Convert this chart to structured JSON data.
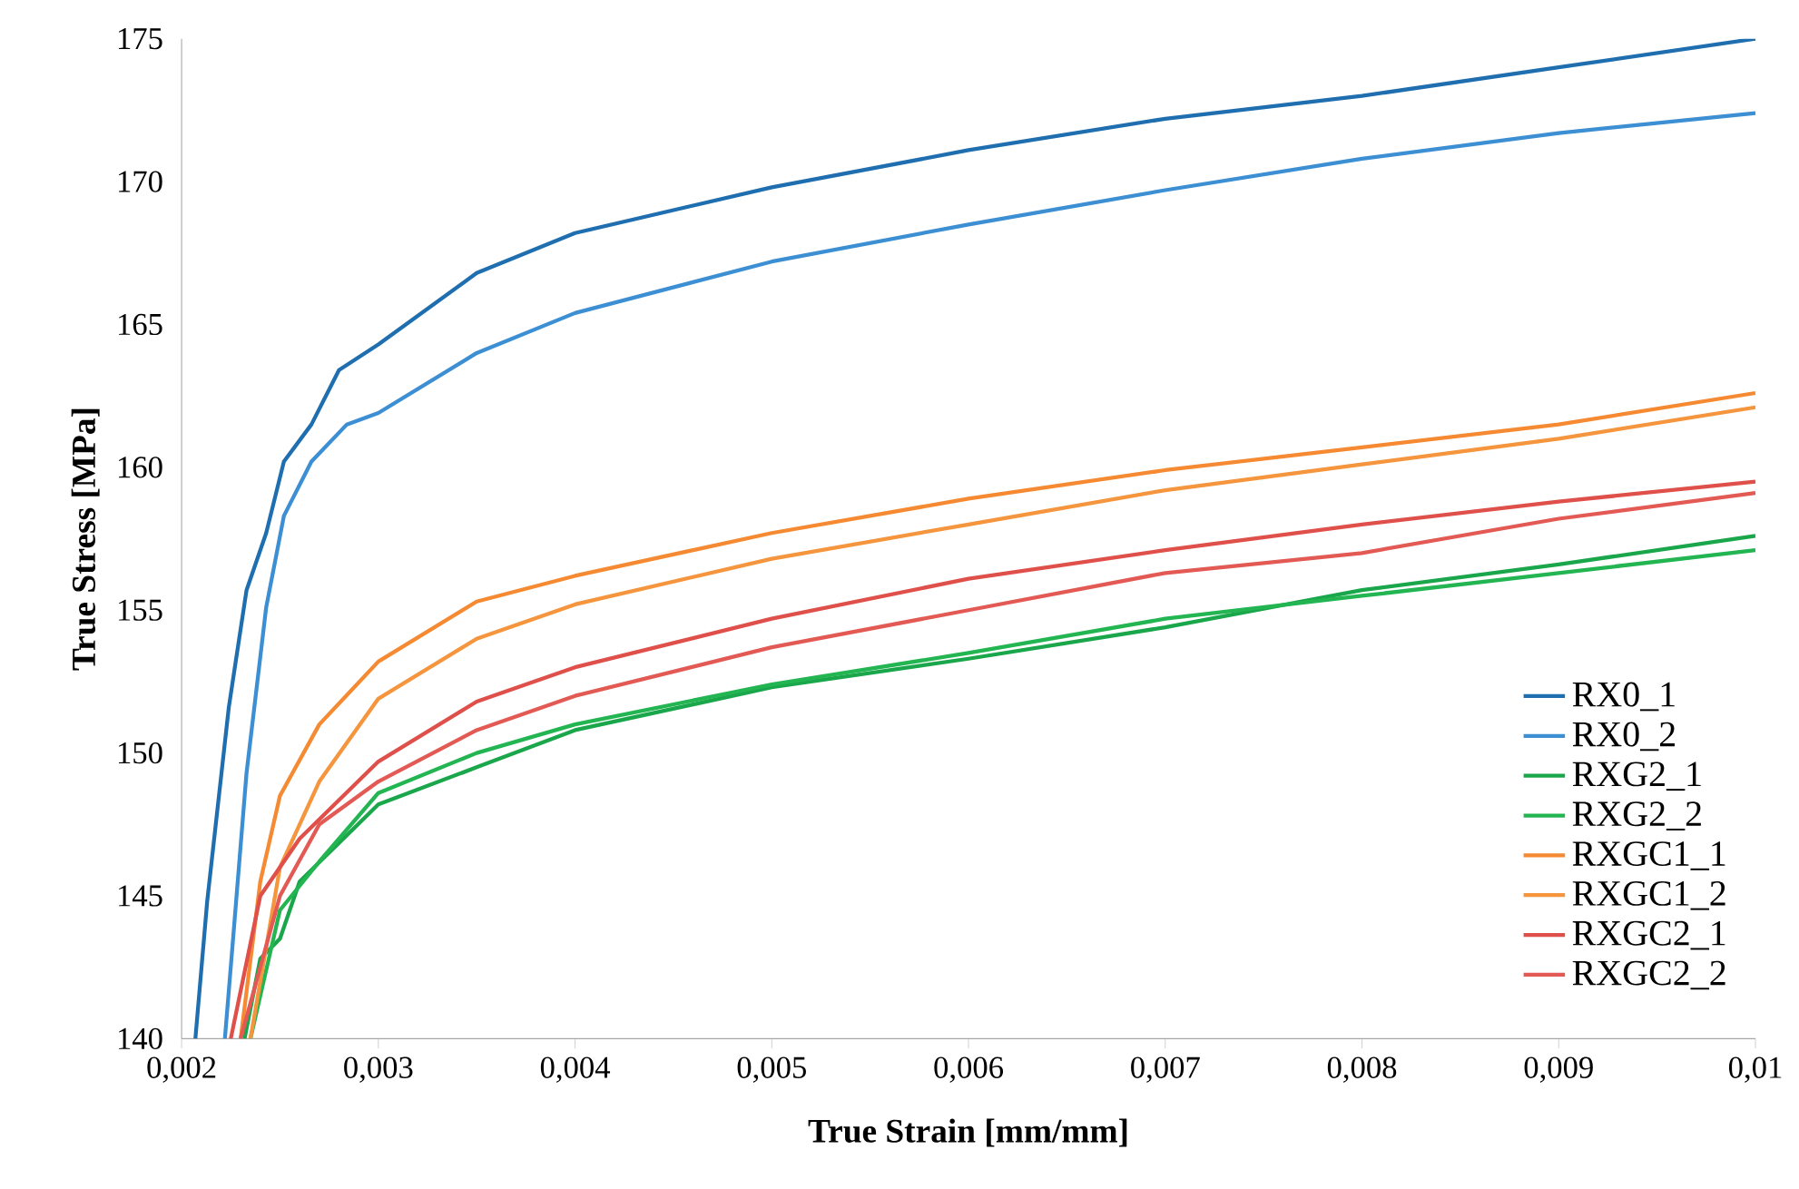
{
  "chart_data": {
    "type": "line",
    "xlabel": "True Strain [mm/mm]",
    "ylabel": "True Stress [MPa]",
    "xlim": [
      0.002,
      0.01
    ],
    "ylim": [
      140,
      175
    ],
    "xticks": [
      {
        "value": 0.002,
        "label": "0,002"
      },
      {
        "value": 0.003,
        "label": "0,003"
      },
      {
        "value": 0.004,
        "label": "0,004"
      },
      {
        "value": 0.005,
        "label": "0,005"
      },
      {
        "value": 0.006,
        "label": "0,006"
      },
      {
        "value": 0.007,
        "label": "0,007"
      },
      {
        "value": 0.008,
        "label": "0,008"
      },
      {
        "value": 0.009,
        "label": "0,009"
      },
      {
        "value": 0.01,
        "label": "0,01"
      }
    ],
    "yticks": [
      140,
      145,
      150,
      155,
      160,
      165,
      170,
      175
    ],
    "grid": false,
    "legend": "bottom right",
    "marker": "none",
    "line_style": "solid",
    "series": [
      {
        "name": "RX0_1",
        "color": "#1f6fb0",
        "x": [
          0.00207,
          0.00213,
          0.00224,
          0.00233,
          0.00243,
          0.00252,
          0.00266,
          0.0028,
          0.003,
          0.0035,
          0.004,
          0.005,
          0.006,
          0.007,
          0.008,
          0.009,
          0.01
        ],
        "values": [
          140,
          144.8,
          151.6,
          155.7,
          157.7,
          160.2,
          161.5,
          163.4,
          164.3,
          166.8,
          168.2,
          169.8,
          171.1,
          172.2,
          173.0,
          174.0,
          175.0
        ]
      },
      {
        "name": "RX0_2",
        "color": "#3d8fd4",
        "x": [
          0.00222,
          0.00227,
          0.00233,
          0.00243,
          0.00252,
          0.00266,
          0.00284,
          0.003,
          0.0035,
          0.004,
          0.005,
          0.006,
          0.007,
          0.008,
          0.009,
          0.01
        ],
        "values": [
          140,
          144.2,
          149.3,
          155.1,
          158.3,
          160.2,
          161.5,
          161.9,
          164.0,
          165.4,
          167.2,
          168.5,
          169.7,
          170.8,
          171.7,
          172.4
        ]
      },
      {
        "name": "RXG2_1",
        "color": "#1aa64a",
        "x": [
          0.00232,
          0.0024,
          0.0025,
          0.0026,
          0.003,
          0.0035,
          0.004,
          0.005,
          0.006,
          0.007,
          0.008,
          0.009,
          0.01
        ],
        "values": [
          140,
          142.8,
          143.5,
          145.5,
          148.2,
          149.5,
          150.8,
          152.3,
          153.3,
          154.4,
          155.7,
          156.6,
          157.6
        ]
      },
      {
        "name": "RXG2_2",
        "color": "#22b552",
        "x": [
          0.00235,
          0.0025,
          0.0027,
          0.003,
          0.0035,
          0.004,
          0.005,
          0.006,
          0.007,
          0.008,
          0.009,
          0.01
        ],
        "values": [
          140,
          144.5,
          146.2,
          148.6,
          150.0,
          151.0,
          152.4,
          153.5,
          154.7,
          155.5,
          156.3,
          157.1
        ]
      },
      {
        "name": "RXGC1_1",
        "color": "#f58a32",
        "x": [
          0.0023,
          0.0024,
          0.0025,
          0.0027,
          0.003,
          0.0035,
          0.004,
          0.005,
          0.006,
          0.007,
          0.008,
          0.009,
          0.01
        ],
        "values": [
          140,
          145.5,
          148.5,
          151.0,
          153.2,
          155.3,
          156.2,
          157.7,
          158.9,
          159.9,
          160.7,
          161.5,
          162.6
        ]
      },
      {
        "name": "RXGC1_2",
        "color": "#f5953d",
        "x": [
          0.00235,
          0.0025,
          0.0027,
          0.003,
          0.0035,
          0.004,
          0.005,
          0.006,
          0.007,
          0.008,
          0.009,
          0.01
        ],
        "values": [
          140,
          146.0,
          149.0,
          151.9,
          154.0,
          155.2,
          156.8,
          158.0,
          159.2,
          160.1,
          161.0,
          162.1
        ]
      },
      {
        "name": "RXGC2_1",
        "color": "#e0504a",
        "x": [
          0.00225,
          0.0024,
          0.0026,
          0.003,
          0.0035,
          0.004,
          0.005,
          0.006,
          0.007,
          0.008,
          0.009,
          0.01
        ],
        "values": [
          140,
          145.0,
          147.0,
          149.7,
          151.8,
          153.0,
          154.7,
          156.1,
          157.1,
          158.0,
          158.8,
          159.5
        ]
      },
      {
        "name": "RXGC2_2",
        "color": "#e35a55",
        "x": [
          0.0023,
          0.0025,
          0.0027,
          0.003,
          0.0035,
          0.004,
          0.005,
          0.006,
          0.007,
          0.008,
          0.009,
          0.01
        ],
        "values": [
          140,
          145.0,
          147.5,
          149.0,
          150.8,
          152.0,
          153.7,
          155.0,
          156.3,
          157.0,
          158.2,
          159.1
        ]
      }
    ]
  }
}
